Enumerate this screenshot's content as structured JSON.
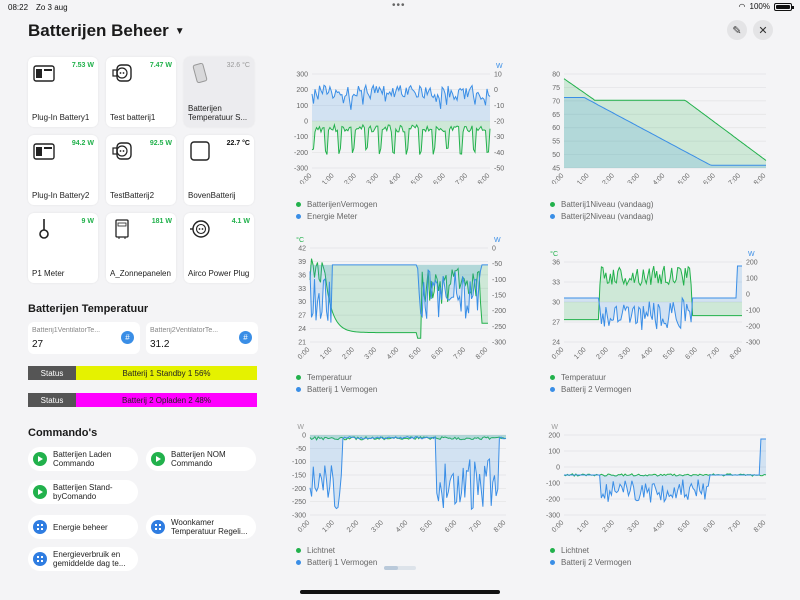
{
  "status_bar": {
    "time": "08:22",
    "date": "Zo 3 aug",
    "battery": "100%"
  },
  "header": {
    "title": "Batterijen Beheer"
  },
  "tiles": [
    {
      "label": "Plug-In Battery1",
      "value": "7.53 W",
      "icon": "battery-box-icon"
    },
    {
      "label": "Test batterij1",
      "value": "7.47 W",
      "icon": "plug-socket-icon"
    },
    {
      "label": "Batterijen Temperatuur S...",
      "value": "32.6 °C",
      "icon": "sensor-icon"
    },
    {
      "label": "Plug-In Battery2",
      "value": "94.2 W",
      "icon": "battery-box-icon"
    },
    {
      "label": "TestBatterij2",
      "value": "92.5 W",
      "icon": "plug-socket-icon"
    },
    {
      "label": "BovenBatterij",
      "value": "22.7 °C",
      "icon": "square-device-icon"
    },
    {
      "label": "P1 Meter",
      "value": "9 W",
      "icon": "meter-probe-icon"
    },
    {
      "label": "A_Zonnepanelen",
      "value": "181 W",
      "icon": "inverter-icon"
    },
    {
      "label": "Airco Power Plug",
      "value": "4.1 W",
      "icon": "power-plug-icon"
    }
  ],
  "temperature": {
    "title": "Batterijen Temperatuur",
    "cards": [
      {
        "label": "Batterij1VentilatorTe...",
        "value": "27"
      },
      {
        "label": "Batterij2VentilatorTe...",
        "value": "31.2"
      }
    ]
  },
  "status_rows": [
    {
      "key": "Status",
      "value": "Batterij 1 Standby 1 56%",
      "color": "#e5f200"
    },
    {
      "key": "Status",
      "value": "Batterij 2 Opladen 2 48%",
      "color": "#ff00ff"
    }
  ],
  "commands": {
    "title": "Commando's",
    "items": [
      {
        "label": "Batterijen Laden Commando",
        "kind": "play"
      },
      {
        "label": "Batterijen NOM Commando",
        "kind": "play"
      },
      {
        "label": "Batterijen Stand-byComando",
        "kind": "play"
      },
      {
        "label": "Energie beheer",
        "kind": "grid"
      },
      {
        "label": "Woonkamer Temperatuur Regeli...",
        "kind": "grid"
      },
      {
        "label": "Energieverbruik en gemiddelde dag te...",
        "kind": "grid"
      }
    ]
  },
  "colors": {
    "green": "#22b14c",
    "blue": "#3a8ee6"
  },
  "chart_data": [
    {
      "type": "line",
      "x": [
        "0:00",
        "1:00",
        "2:00",
        "3:00",
        "4:00",
        "5:00",
        "6:00",
        "7:00",
        "8:00"
      ],
      "left_ticks": [
        "300",
        "200",
        "100",
        "0",
        "-100",
        "-200",
        "-300"
      ],
      "right_ticks": [
        "10",
        "0",
        "-10",
        "-20",
        "-30",
        "-40",
        "-50"
      ],
      "left_unit": "",
      "right_unit": "W",
      "series": [
        {
          "name": "BatterijenVermogen",
          "color": "#22b14c"
        },
        {
          "name": "Energie Meter",
          "color": "#3a8ee6"
        }
      ]
    },
    {
      "type": "area",
      "x": [
        "0:00",
        "1:00",
        "2:00",
        "3:00",
        "4:00",
        "5:00",
        "6:00",
        "7:00",
        "8:00"
      ],
      "left_ticks": [
        "80",
        "75",
        "70",
        "65",
        "60",
        "55",
        "50",
        "45"
      ],
      "right_ticks": [],
      "left_unit": "",
      "right_unit": "",
      "series": [
        {
          "name": "Batterij1Niveau (vandaag)",
          "color": "#22b14c"
        },
        {
          "name": "Batterij2Niveau (vandaag)",
          "color": "#3a8ee6"
        }
      ]
    },
    {
      "type": "line",
      "x": [
        "0:00",
        "1:00",
        "2:00",
        "3:00",
        "4:00",
        "5:00",
        "6:00",
        "7:00",
        "8:00"
      ],
      "left_ticks": [
        "42",
        "39",
        "36",
        "33",
        "30",
        "27",
        "24",
        "21"
      ],
      "right_ticks": [
        "0",
        "-50",
        "-100",
        "-150",
        "-200",
        "-250",
        "-300"
      ],
      "left_unit": "°C",
      "right_unit": "W",
      "series": [
        {
          "name": "Temperatuur",
          "color": "#22b14c"
        },
        {
          "name": "Batterij 1 Vermogen",
          "color": "#3a8ee6"
        }
      ]
    },
    {
      "type": "line",
      "x": [
        "0:00",
        "1:00",
        "2:00",
        "3:00",
        "4:00",
        "5:00",
        "6:00",
        "7:00",
        "8:00"
      ],
      "left_ticks": [
        "36",
        "33",
        "30",
        "27",
        "24"
      ],
      "right_ticks": [
        "200",
        "100",
        "0",
        "-100",
        "-200",
        "-300"
      ],
      "left_unit": "°C",
      "right_unit": "W",
      "series": [
        {
          "name": "Temperatuur",
          "color": "#22b14c"
        },
        {
          "name": "Batterij 2 Vermogen",
          "color": "#3a8ee6"
        }
      ]
    },
    {
      "type": "area",
      "x": [
        "0:00",
        "1:00",
        "2:00",
        "3:00",
        "4:00",
        "5:00",
        "6:00",
        "7:00",
        "8:00"
      ],
      "left_ticks": [
        "0",
        "-50",
        "-100",
        "-150",
        "-200",
        "-250",
        "-300"
      ],
      "right_ticks": [],
      "left_unit": "W",
      "right_unit": "",
      "series": [
        {
          "name": "Lichtnet",
          "color": "#22b14c"
        },
        {
          "name": "Batterij 1 Vermogen",
          "color": "#3a8ee6"
        }
      ]
    },
    {
      "type": "area",
      "x": [
        "0:00",
        "1:00",
        "2:00",
        "3:00",
        "4:00",
        "5:00",
        "6:00",
        "7:00",
        "8:00"
      ],
      "left_ticks": [
        "200",
        "100",
        "0",
        "-100",
        "-200",
        "-300"
      ],
      "right_ticks": [],
      "left_unit": "W",
      "right_unit": "",
      "series": [
        {
          "name": "Lichtnet",
          "color": "#22b14c"
        },
        {
          "name": "Batterij 2 Vermogen",
          "color": "#3a8ee6"
        }
      ]
    }
  ]
}
